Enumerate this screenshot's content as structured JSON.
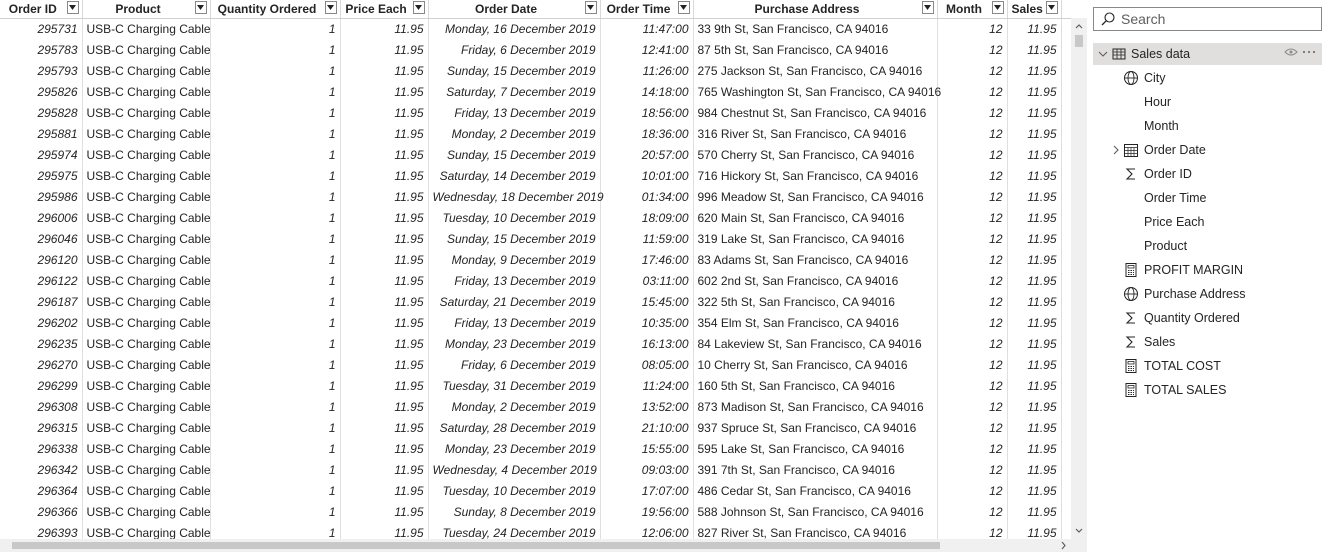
{
  "table": {
    "columns": [
      "Order ID",
      "Product",
      "Quantity Ordered",
      "Price Each",
      "Order Date",
      "Order Time",
      "Purchase Address",
      "Month",
      "Sales"
    ],
    "rows": [
      [
        "295731",
        "USB-C Charging Cable",
        "1",
        "11.95",
        "Monday, 16 December 2019",
        "11:47:00",
        "33 9th St, San Francisco, CA 94016",
        "12",
        "11.95"
      ],
      [
        "295783",
        "USB-C Charging Cable",
        "1",
        "11.95",
        "Friday, 6 December 2019",
        "12:41:00",
        "87 5th St, San Francisco, CA 94016",
        "12",
        "11.95"
      ],
      [
        "295793",
        "USB-C Charging Cable",
        "1",
        "11.95",
        "Sunday, 15 December 2019",
        "11:26:00",
        "275 Jackson St, San Francisco, CA 94016",
        "12",
        "11.95"
      ],
      [
        "295826",
        "USB-C Charging Cable",
        "1",
        "11.95",
        "Saturday, 7 December 2019",
        "14:18:00",
        "765 Washington St, San Francisco, CA 94016",
        "12",
        "11.95"
      ],
      [
        "295828",
        "USB-C Charging Cable",
        "1",
        "11.95",
        "Friday, 13 December 2019",
        "18:56:00",
        "984 Chestnut St, San Francisco, CA 94016",
        "12",
        "11.95"
      ],
      [
        "295881",
        "USB-C Charging Cable",
        "1",
        "11.95",
        "Monday, 2 December 2019",
        "18:36:00",
        "316 River St, San Francisco, CA 94016",
        "12",
        "11.95"
      ],
      [
        "295974",
        "USB-C Charging Cable",
        "1",
        "11.95",
        "Sunday, 15 December 2019",
        "20:57:00",
        "570 Cherry St, San Francisco, CA 94016",
        "12",
        "11.95"
      ],
      [
        "295975",
        "USB-C Charging Cable",
        "1",
        "11.95",
        "Saturday, 14 December 2019",
        "10:01:00",
        "716 Hickory St, San Francisco, CA 94016",
        "12",
        "11.95"
      ],
      [
        "295986",
        "USB-C Charging Cable",
        "1",
        "11.95",
        "Wednesday, 18 December 2019",
        "01:34:00",
        "996 Meadow St, San Francisco, CA 94016",
        "12",
        "11.95"
      ],
      [
        "296006",
        "USB-C Charging Cable",
        "1",
        "11.95",
        "Tuesday, 10 December 2019",
        "18:09:00",
        "620 Main St, San Francisco, CA 94016",
        "12",
        "11.95"
      ],
      [
        "296046",
        "USB-C Charging Cable",
        "1",
        "11.95",
        "Sunday, 15 December 2019",
        "11:59:00",
        "319 Lake St, San Francisco, CA 94016",
        "12",
        "11.95"
      ],
      [
        "296120",
        "USB-C Charging Cable",
        "1",
        "11.95",
        "Monday, 9 December 2019",
        "17:46:00",
        "83 Adams St, San Francisco, CA 94016",
        "12",
        "11.95"
      ],
      [
        "296122",
        "USB-C Charging Cable",
        "1",
        "11.95",
        "Friday, 13 December 2019",
        "03:11:00",
        "602 2nd St, San Francisco, CA 94016",
        "12",
        "11.95"
      ],
      [
        "296187",
        "USB-C Charging Cable",
        "1",
        "11.95",
        "Saturday, 21 December 2019",
        "15:45:00",
        "322 5th St, San Francisco, CA 94016",
        "12",
        "11.95"
      ],
      [
        "296202",
        "USB-C Charging Cable",
        "1",
        "11.95",
        "Friday, 13 December 2019",
        "10:35:00",
        "354 Elm St, San Francisco, CA 94016",
        "12",
        "11.95"
      ],
      [
        "296235",
        "USB-C Charging Cable",
        "1",
        "11.95",
        "Monday, 23 December 2019",
        "16:13:00",
        "84 Lakeview St, San Francisco, CA 94016",
        "12",
        "11.95"
      ],
      [
        "296270",
        "USB-C Charging Cable",
        "1",
        "11.95",
        "Friday, 6 December 2019",
        "08:05:00",
        "10 Cherry St, San Francisco, CA 94016",
        "12",
        "11.95"
      ],
      [
        "296299",
        "USB-C Charging Cable",
        "1",
        "11.95",
        "Tuesday, 31 December 2019",
        "11:24:00",
        "160 5th St, San Francisco, CA 94016",
        "12",
        "11.95"
      ],
      [
        "296308",
        "USB-C Charging Cable",
        "1",
        "11.95",
        "Monday, 2 December 2019",
        "13:52:00",
        "873 Madison St, San Francisco, CA 94016",
        "12",
        "11.95"
      ],
      [
        "296315",
        "USB-C Charging Cable",
        "1",
        "11.95",
        "Saturday, 28 December 2019",
        "21:10:00",
        "937 Spruce St, San Francisco, CA 94016",
        "12",
        "11.95"
      ],
      [
        "296338",
        "USB-C Charging Cable",
        "1",
        "11.95",
        "Monday, 23 December 2019",
        "15:55:00",
        "595 Lake St, San Francisco, CA 94016",
        "12",
        "11.95"
      ],
      [
        "296342",
        "USB-C Charging Cable",
        "1",
        "11.95",
        "Wednesday, 4 December 2019",
        "09:03:00",
        "391 7th St, San Francisco, CA 94016",
        "12",
        "11.95"
      ],
      [
        "296364",
        "USB-C Charging Cable",
        "1",
        "11.95",
        "Tuesday, 10 December 2019",
        "17:07:00",
        "486 Cedar St, San Francisco, CA 94016",
        "12",
        "11.95"
      ],
      [
        "296366",
        "USB-C Charging Cable",
        "1",
        "11.95",
        "Sunday, 8 December 2019",
        "19:56:00",
        "588 Johnson St, San Francisco, CA 94016",
        "12",
        "11.95"
      ],
      [
        "296393",
        "USB-C Charging Cable",
        "1",
        "11.95",
        "Tuesday, 24 December 2019",
        "12:06:00",
        "827 River St, San Francisco, CA 94016",
        "12",
        "11.95"
      ]
    ]
  },
  "fields_pane": {
    "search_placeholder": "Search",
    "table_name": "Sales data",
    "fields": [
      {
        "label": "City",
        "icon": "globe-icon"
      },
      {
        "label": "Hour",
        "icon": ""
      },
      {
        "label": "Month",
        "icon": ""
      },
      {
        "label": "Order Date",
        "icon": "calendar-icon",
        "expandable": true
      },
      {
        "label": "Order ID",
        "icon": "sigma-icon"
      },
      {
        "label": "Order Time",
        "icon": ""
      },
      {
        "label": "Price Each",
        "icon": ""
      },
      {
        "label": "Product",
        "icon": ""
      },
      {
        "label": "PROFIT MARGIN",
        "icon": "calculator-icon"
      },
      {
        "label": "Purchase Address",
        "icon": "globe-icon"
      },
      {
        "label": "Quantity Ordered",
        "icon": "sigma-icon"
      },
      {
        "label": "Sales",
        "icon": "sigma-icon"
      },
      {
        "label": "TOTAL COST",
        "icon": "calculator-icon"
      },
      {
        "label": "TOTAL SALES",
        "icon": "calculator-icon"
      }
    ]
  }
}
